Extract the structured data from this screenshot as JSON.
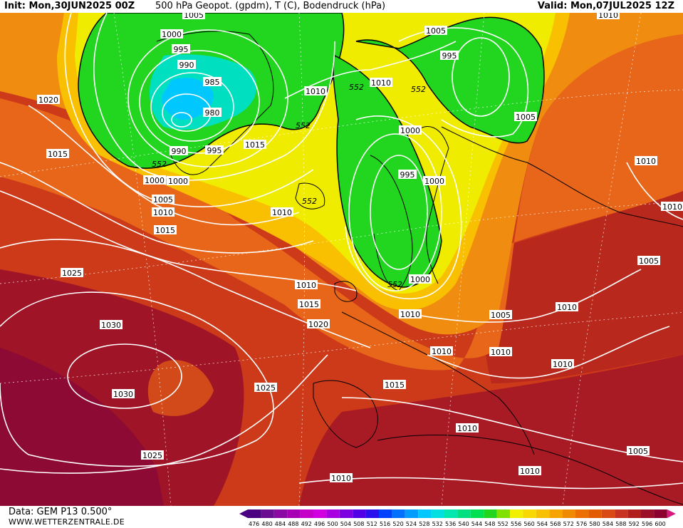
{
  "header": {
    "init": "Init: Mon,30JUN2025 00Z",
    "title": "500 hPa Geopot. (gpdm), T (C), Bodendruck (hPa)",
    "valid": "Valid: Mon,07JUL2025 12Z"
  },
  "footer": {
    "source": "Data: GEM P13 0.500°",
    "site": "WWW.WETTERZENTRALE.DE"
  },
  "legend": {
    "values": [
      "476",
      "480",
      "484",
      "488",
      "492",
      "496",
      "500",
      "504",
      "508",
      "512",
      "516",
      "520",
      "524",
      "528",
      "532",
      "536",
      "540",
      "544",
      "548",
      "552",
      "556",
      "560",
      "564",
      "568",
      "572",
      "576",
      "580",
      "584",
      "588",
      "592",
      "596",
      "600"
    ],
    "colors": [
      "#4b0082",
      "#6a0d91",
      "#8a0aa3",
      "#a700b5",
      "#c500c8",
      "#d200e0",
      "#a800e0",
      "#7d00e0",
      "#5200e6",
      "#2b10ee",
      "#0040ff",
      "#0070ff",
      "#009dff",
      "#00c8ff",
      "#00e0e0",
      "#00e8b0",
      "#00e080",
      "#00e050",
      "#22d51f",
      "#80e000",
      "#f0f000",
      "#f8d800",
      "#f8c000",
      "#f8a400",
      "#f08a00",
      "#ec7000",
      "#e45a00",
      "#d94a14",
      "#c83220",
      "#b01e1e",
      "#9c0f28",
      "#8c0030"
    ]
  },
  "isobars": {
    "labels": [
      "1005",
      "1000",
      "995",
      "990",
      "985",
      "980",
      "990",
      "995",
      "1000",
      "1005",
      "1010",
      "1015",
      "1020",
      "1015",
      "1010",
      "1015",
      "1010",
      "1025",
      "1030",
      "1030",
      "1025",
      "1025",
      "1020",
      "1015",
      "1010",
      "1005",
      "1000",
      "995",
      "1000",
      "1000",
      "1005",
      "995",
      "1000",
      "1010",
      "1010",
      "1010",
      "1005",
      "1010",
      "1010",
      "1005",
      "1010",
      "1015",
      "1010",
      "1010",
      "1005",
      "1010",
      "1010",
      "1010",
      "1010"
    ]
  },
  "geopot": {
    "labels": [
      "552",
      "552",
      "552",
      "552",
      "552",
      "552"
    ]
  }
}
